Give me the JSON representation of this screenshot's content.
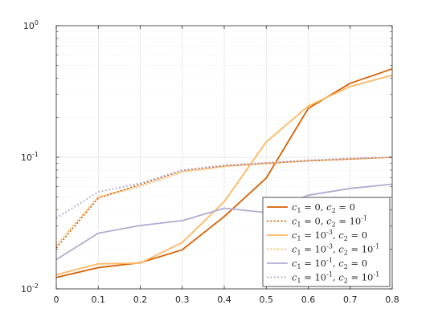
{
  "chart_data": {
    "type": "line",
    "title": "",
    "xlabel": "",
    "ylabel": "",
    "yscale": "log",
    "xlim": [
      0,
      0.8
    ],
    "ylim": [
      0.01,
      1
    ],
    "grid": true,
    "legend_position": "bottom-right",
    "x_ticks": [
      {
        "value": 0,
        "label": "0"
      },
      {
        "value": 0.1,
        "label": "0.1"
      },
      {
        "value": 0.2,
        "label": "0.2"
      },
      {
        "value": 0.3,
        "label": "0.3"
      },
      {
        "value": 0.4,
        "label": "0.4"
      },
      {
        "value": 0.5,
        "label": "0.5"
      },
      {
        "value": 0.6,
        "label": "0.6"
      },
      {
        "value": 0.7,
        "label": "0.7"
      },
      {
        "value": 0.8,
        "label": "0.8"
      }
    ],
    "y_ticks": [
      {
        "value": 0.01,
        "base": "10",
        "exp": "-2"
      },
      {
        "value": 0.1,
        "base": "10",
        "exp": "-1"
      },
      {
        "value": 1,
        "base": "10",
        "exp": "0"
      }
    ],
    "x": [
      0,
      0.1,
      0.2,
      0.3,
      0.4,
      0.5,
      0.6,
      0.7,
      0.8
    ],
    "series": [
      {
        "name": "c1 = 0, c2 = 0",
        "legend": [
          [
            "c",
            "1",
            " = 0, "
          ],
          [
            "c",
            "2",
            " = 0"
          ]
        ],
        "color": "#D95F02",
        "dash": "solid",
        "values": [
          0.0122,
          0.0145,
          0.0158,
          0.0198,
          0.0355,
          0.0695,
          0.235,
          0.365,
          0.47
        ]
      },
      {
        "name": "c1 = 0, c2 = 10^-1",
        "legend": [
          [
            "c",
            "1",
            " = 0, "
          ],
          [
            "c",
            "2",
            " = 10",
            {
              "sup": "-1"
            }
          ]
        ],
        "color": "#D95F02",
        "dash": "dotted",
        "values": [
          0.0205,
          0.049,
          0.062,
          0.079,
          0.086,
          0.09,
          0.094,
          0.097,
          0.1
        ]
      },
      {
        "name": "c1 = 10^-3, c2 = 0",
        "legend": [
          [
            "c",
            "1",
            " = 10",
            {
              "sup": "-3"
            },
            ", "
          ],
          [
            "c",
            "2",
            " = 0"
          ]
        ],
        "color": "#FDB863",
        "dash": "solid",
        "values": [
          0.0128,
          0.0155,
          0.0157,
          0.0225,
          0.046,
          0.131,
          0.245,
          0.345,
          0.42
        ]
      },
      {
        "name": "c1 = 10^-3, c2 = 10^-1",
        "legend": [
          [
            "c",
            "1",
            " = 10",
            {
              "sup": "-3"
            },
            ", "
          ],
          [
            "c",
            "2",
            " = 10",
            {
              "sup": "-1"
            }
          ]
        ],
        "color": "#FDB863",
        "dash": "dotted",
        "values": [
          0.0215,
          0.05,
          0.06,
          0.077,
          0.085,
          0.09,
          0.094,
          0.097,
          0.1
        ]
      },
      {
        "name": "c1 = 10^-1, c2 = 0",
        "legend": [
          [
            "c",
            "1",
            " = 10",
            {
              "sup": "-1"
            },
            ", "
          ],
          [
            "c",
            "2",
            " = 0"
          ]
        ],
        "color": "#B2ABD2",
        "dash": "solid",
        "values": [
          0.0167,
          0.0265,
          0.0303,
          0.033,
          0.041,
          0.038,
          0.0515,
          0.058,
          0.0625
        ]
      },
      {
        "name": "c1 = 10^-1, c2 = 10^-1",
        "legend": [
          [
            "c",
            "1",
            " = 10",
            {
              "sup": "-1"
            },
            ", "
          ],
          [
            "c",
            "2",
            " = 10",
            {
              "sup": "-1"
            }
          ]
        ],
        "color": "#B2ABD2",
        "dash": "dotted",
        "values": [
          0.0345,
          0.0545,
          0.0635,
          0.08,
          0.087,
          0.091,
          0.095,
          0.098,
          0.1
        ]
      }
    ]
  }
}
